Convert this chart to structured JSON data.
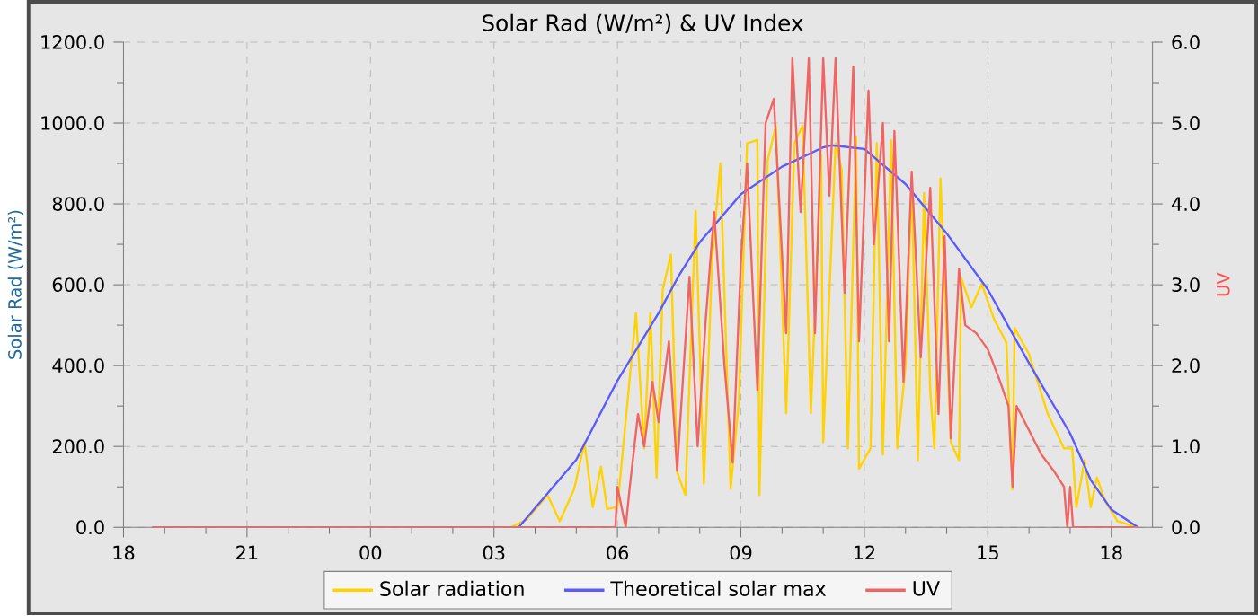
{
  "chart_data": {
    "type": "line",
    "title": "Solar Rad (W/m²) &  UV Index",
    "ylabel": "Solar Rad (W/m²)",
    "y2label": "UV",
    "xlim": [
      18,
      43
    ],
    "ylim": [
      0,
      1200
    ],
    "y2lim": [
      0,
      6
    ],
    "xticks": [
      {
        "value": 18,
        "label": "18"
      },
      {
        "value": 21,
        "label": "21"
      },
      {
        "value": 24,
        "label": "00"
      },
      {
        "value": 27,
        "label": "03"
      },
      {
        "value": 30,
        "label": "06"
      },
      {
        "value": 33,
        "label": "09"
      },
      {
        "value": 36,
        "label": "12"
      },
      {
        "value": 39,
        "label": "15"
      },
      {
        "value": 42,
        "label": "18"
      }
    ],
    "yticks": [
      {
        "value": 0,
        "label": "0.0"
      },
      {
        "value": 200,
        "label": "200.0"
      },
      {
        "value": 400,
        "label": "400.0"
      },
      {
        "value": 600,
        "label": "600.0"
      },
      {
        "value": 800,
        "label": "800.0"
      },
      {
        "value": 1000,
        "label": "1000.0"
      },
      {
        "value": 1200,
        "label": "1200.0"
      }
    ],
    "y2ticks": [
      {
        "value": 0,
        "label": "0.0"
      },
      {
        "value": 1,
        "label": "1.0"
      },
      {
        "value": 2,
        "label": "2.0"
      },
      {
        "value": 3,
        "label": "3.0"
      },
      {
        "value": 4,
        "label": "4.0"
      },
      {
        "value": 5,
        "label": "5.0"
      },
      {
        "value": 6,
        "label": "6.0"
      }
    ],
    "grid": true,
    "legend": "bottom",
    "series": [
      {
        "name": "Solar radiation",
        "color": "#ffd200",
        "x": [
          18.7,
          27.4,
          27.8,
          28.3,
          28.6,
          28.95,
          29.2,
          29.4,
          29.6,
          29.75,
          30.0,
          30.45,
          30.65,
          30.8,
          30.95,
          31.1,
          31.3,
          31.45,
          31.65,
          31.9,
          32.1,
          32.3,
          32.5,
          32.75,
          32.95,
          33.15,
          33.4,
          33.45,
          33.65,
          33.85,
          34.1,
          34.3,
          34.5,
          34.7,
          34.95,
          35.0,
          35.3,
          35.45,
          35.6,
          35.8,
          35.87,
          36.15,
          36.3,
          36.45,
          36.65,
          36.8,
          37.0,
          37.15,
          37.3,
          37.45,
          37.6,
          37.7,
          37.85,
          38.1,
          38.3,
          38.35,
          38.6,
          38.85,
          39.15,
          39.45,
          39.6,
          39.65,
          40.0,
          40.45,
          40.85,
          41.05,
          41.15,
          41.35,
          41.5,
          41.65,
          41.85,
          42.15,
          42.65
        ],
        "values": [
          0,
          0,
          20,
          80,
          15,
          95,
          210,
          50,
          150,
          45,
          50,
          530,
          195,
          530,
          123,
          588,
          675,
          137,
          80,
          783,
          108,
          660,
          900,
          95,
          311,
          950,
          958,
          80,
          907,
          994,
          282,
          950,
          994,
          282,
          921,
          210,
          950,
          885,
          195,
          965,
          145,
          195,
          950,
          180,
          958,
          195,
          399,
          856,
          166,
          827,
          340,
          195,
          863,
          210,
          166,
          617,
          544,
          602,
          515,
          457,
          94,
          493,
          428,
          282,
          195,
          195,
          50,
          166,
          50,
          123,
          65,
          15,
          0
        ]
      },
      {
        "name": "Theoretical solar max",
        "color": "#5a5aff",
        "x": [
          18.7,
          27.6,
          29.0,
          30.0,
          31.0,
          31.5,
          32.0,
          33.0,
          34.0,
          35.0,
          35.2,
          36.0,
          37.0,
          38.0,
          39.0,
          40.0,
          41.0,
          41.5,
          42.0,
          42.65
        ],
        "values": [
          0,
          0,
          167,
          363,
          530,
          624,
          705,
          824,
          892,
          940,
          945,
          936,
          849,
          727,
          588,
          406,
          232,
          117,
          44,
          0
        ]
      },
      {
        "name": "UV",
        "color": "#f06464",
        "axis": "y2",
        "x": [
          18.7,
          29.95,
          30.0,
          30.2,
          30.3,
          30.5,
          30.65,
          30.85,
          31.0,
          31.25,
          31.45,
          31.75,
          31.95,
          32.15,
          32.35,
          32.6,
          32.8,
          33.0,
          33.15,
          33.4,
          33.6,
          33.8,
          34.1,
          34.25,
          34.45,
          34.65,
          34.8,
          35.0,
          35.15,
          35.3,
          35.52,
          35.73,
          35.87,
          36.1,
          36.23,
          36.45,
          36.6,
          36.73,
          36.95,
          37.15,
          37.37,
          37.6,
          37.8,
          37.95,
          38.1,
          38.3,
          38.45,
          38.72,
          39.0,
          39.3,
          39.5,
          39.6,
          39.7,
          40.0,
          40.3,
          40.6,
          40.85,
          40.93,
          41.0,
          41.07,
          42.65
        ],
        "values": [
          0,
          0,
          0.5,
          0,
          0.5,
          1.4,
          1.0,
          1.8,
          1.3,
          2.3,
          0.7,
          3.1,
          1.0,
          2.6,
          3.9,
          2.0,
          0.8,
          3.3,
          4.5,
          1.7,
          5.0,
          5.3,
          2.4,
          5.8,
          3.9,
          5.8,
          2.4,
          5.8,
          4.1,
          5.8,
          2.9,
          5.7,
          2.3,
          5.4,
          3.5,
          5.0,
          2.3,
          4.9,
          1.8,
          4.4,
          2.1,
          4.2,
          1.4,
          3.6,
          1.1,
          3.2,
          2.5,
          2.4,
          2.2,
          1.8,
          1.5,
          0.5,
          1.5,
          1.2,
          0.9,
          0.7,
          0.5,
          0,
          0.5,
          0,
          0
        ]
      }
    ]
  }
}
